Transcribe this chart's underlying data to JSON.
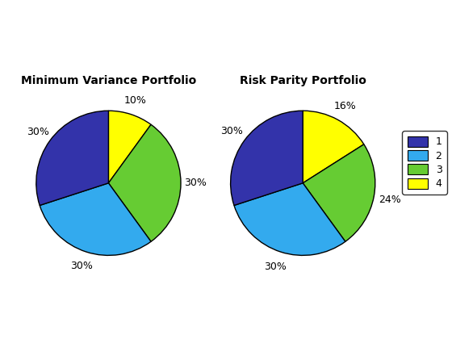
{
  "pie1_title": "Minimum Variance Portfolio",
  "pie2_title": "Risk Parity Portfolio",
  "pie1_values": [
    10,
    30,
    30,
    30
  ],
  "pie2_values": [
    16,
    24,
    30,
    30
  ],
  "labels": [
    "1",
    "2",
    "3",
    "4"
  ],
  "colors_order": [
    "#ffff00",
    "#66cc33",
    "#33aaee",
    "#3333aa"
  ],
  "pie1_pct_labels": [
    "10%",
    "30%",
    "30%",
    "30%"
  ],
  "pie2_pct_labels": [
    "16%",
    "24%",
    "30%",
    "30%"
  ],
  "background_color": "#ffffff",
  "startangle": 90,
  "legend_colors": [
    "#3333aa",
    "#33aaee",
    "#66cc33",
    "#ffff00"
  ],
  "legend_labels": [
    "1",
    "2",
    "3",
    "4"
  ]
}
